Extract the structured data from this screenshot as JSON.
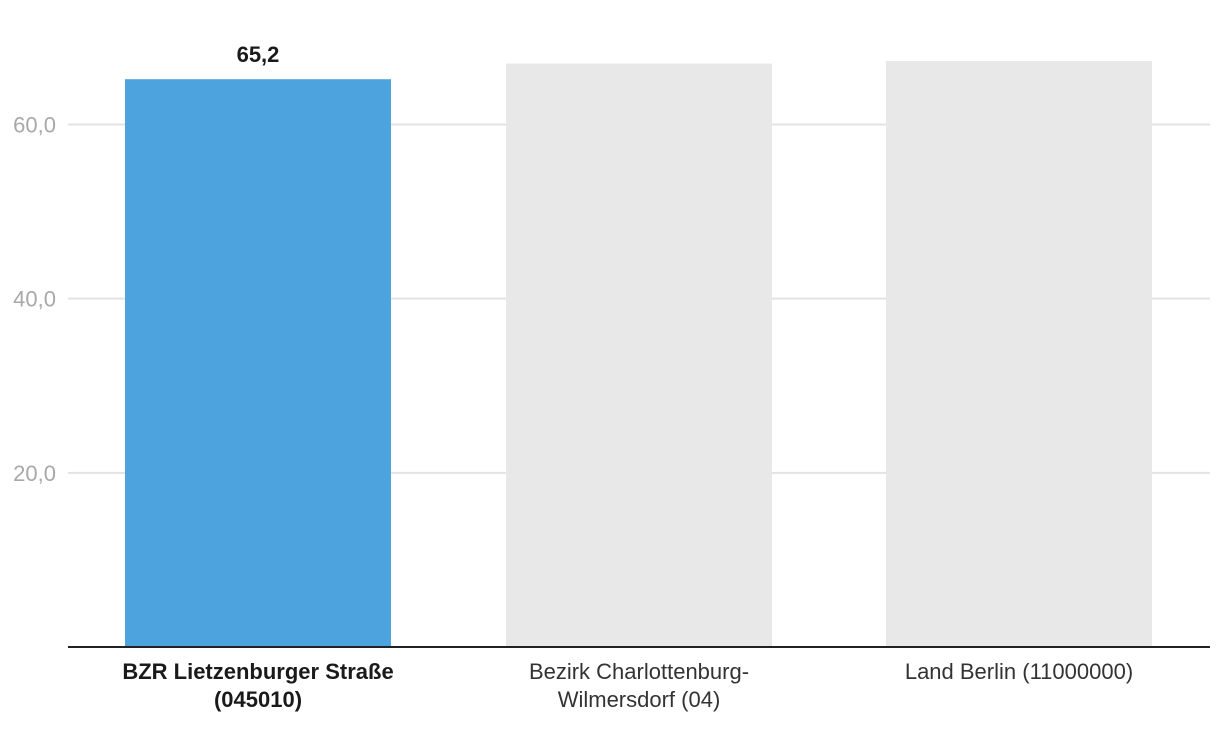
{
  "chart_data": {
    "type": "bar",
    "categories": [
      "BZR Lietzenburger Straße (045010)",
      "Bezirk Charlottenburg-Wilmersdorf (04)",
      "Land Berlin (11000000)"
    ],
    "category_lines": [
      [
        "BZR Lietzenburger Straße",
        "(045010)"
      ],
      [
        "Bezirk Charlottenburg-",
        "Wilmersdorf (04)"
      ],
      [
        "Land Berlin (11000000)"
      ]
    ],
    "values": [
      65.2,
      67.0,
      67.3
    ],
    "data_labels": [
      "65,2",
      "",
      ""
    ],
    "highlight_index": 0,
    "ylim": [
      0,
      72
    ],
    "yticks": [
      20,
      40,
      60
    ],
    "ytick_labels": [
      "20,0",
      "40,0",
      "60,0"
    ],
    "grid": true,
    "colors": {
      "highlight": "#4ca3dd",
      "other": "#e8e8e8",
      "grid": "#e3e3e3",
      "axis": "#222222",
      "tick_text": "#a8a8a8",
      "label_text": "#1a1a1a"
    }
  }
}
